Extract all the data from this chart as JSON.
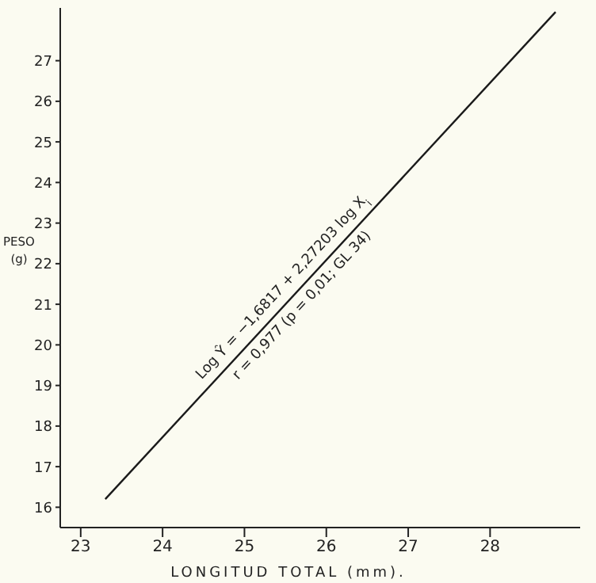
{
  "chart_data": {
    "type": "line",
    "xlabel": "LONGITUD TOTAL (mm).",
    "ylabel": "PESO (g)",
    "x": [
      23.3,
      28.8
    ],
    "series": [
      {
        "color": "#1a1a1a",
        "values": [
          16.2,
          28.2
        ]
      }
    ],
    "xlim": [
      22.75,
      29.1
    ],
    "xticks": [
      23,
      24,
      25,
      26,
      27,
      28
    ],
    "ylim": [
      15.5,
      28.3
    ],
    "yticks": [
      16,
      17,
      18,
      19,
      20,
      21,
      22,
      23,
      24,
      25,
      26,
      27
    ],
    "grid": false,
    "legend": false,
    "marker": "none",
    "line_style": "solid",
    "annotations": [
      "Log Ŷ = −1,6817 + 2,27203 log X$_{i}$",
      "r = 0,977 (p = 0,01; GL 34)"
    ]
  }
}
